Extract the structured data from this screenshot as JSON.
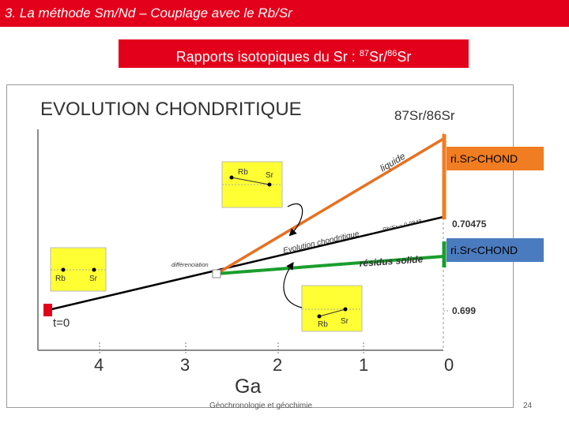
{
  "slide": {
    "title": "3. La méthode Sm/Nd – Couplage avec le Rb/Sr",
    "subtitle_prefix": "Rapports isotopiques du Sr : ",
    "subtitle_sup1": "87",
    "subtitle_mid": "Sr/",
    "subtitle_sup2": "86",
    "subtitle_suffix": "Sr",
    "footer": "Géochronologie et géochimie",
    "page_number": "24"
  },
  "figure": {
    "heading": "EVOLUTION CHONDRITIQUE",
    "y_axis_label": "87Sr/86Sr",
    "x_axis_label": "Ga",
    "x_ticks": [
      "4",
      "3",
      "2",
      "1",
      "0"
    ],
    "y_values": [
      "0.70475",
      "0.699"
    ],
    "t0_label": "t=0",
    "liquid_label": "liquide",
    "chondritic_label": "Evolution chondritique",
    "rbsr_label": "Rb/Sr = 0.0848",
    "residue_label": "résidus solide",
    "differentiation_label": "différenciation",
    "callout_high": "ri.Sr>CHOND",
    "callout_low": "ri.Sr<CHOND",
    "box_rb": "Rb",
    "box_sr": "Sr",
    "colors": {
      "title_red": "#e3001b",
      "liquid": "#e8701f",
      "residue": "#1a9e2d",
      "chondritic": "#000000",
      "highlight": "#ffff33",
      "callout_orange": "#f07d22",
      "callout_blue": "#4b7bbf",
      "start_marker": "#e3001b"
    }
  }
}
